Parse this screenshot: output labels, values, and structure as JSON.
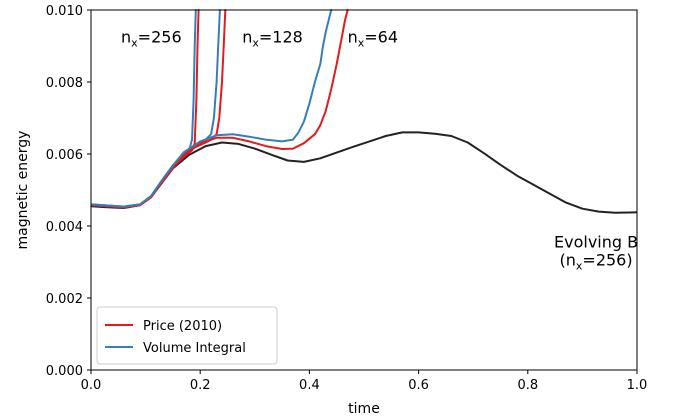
{
  "chart_data": {
    "type": "line",
    "xlabel": "time",
    "ylabel": "magnetic energy",
    "xlim": [
      0.0,
      1.0
    ],
    "ylim": [
      0.0,
      0.01
    ],
    "x_ticks": [
      0.0,
      0.2,
      0.4,
      0.6,
      0.8,
      1.0
    ],
    "x_tick_labels": [
      "0.0",
      "0.2",
      "0.4",
      "0.6",
      "0.8",
      "1.0"
    ],
    "y_ticks": [
      0.0,
      0.002,
      0.004,
      0.006,
      0.008,
      0.01
    ],
    "y_tick_labels": [
      "0.000",
      "0.002",
      "0.004",
      "0.006",
      "0.008",
      "0.010"
    ],
    "grid": false,
    "legend": {
      "position": "lower-left",
      "entries": [
        {
          "label": "Price (2010)",
          "color": "#e41a1c"
        },
        {
          "label": "Volume Integral",
          "color": "#377eb8"
        }
      ]
    },
    "annotations": [
      {
        "id": "ann-nx256",
        "base": "n",
        "sub": "x",
        "rest": "=256",
        "x": 0.055,
        "y": 0.0091
      },
      {
        "id": "ann-nx128",
        "base": "n",
        "sub": "x",
        "rest": "=128",
        "x": 0.277,
        "y": 0.0091
      },
      {
        "id": "ann-nx64",
        "base": "n",
        "sub": "x",
        "rest": "=64",
        "x": 0.47,
        "y": 0.0091
      }
    ],
    "evolving_label": {
      "line1": "Evolving B",
      "base": "(n",
      "sub": "x",
      "rest": "=256)",
      "x": 0.925,
      "y1": 0.0034,
      "y2": 0.0029
    },
    "series": [
      {
        "name": "",
        "group": "evolving",
        "color": "#222222",
        "points": [
          [
            0.0,
            0.00455
          ],
          [
            0.03,
            0.00452
          ],
          [
            0.06,
            0.0045
          ],
          [
            0.09,
            0.00458
          ],
          [
            0.11,
            0.0048
          ],
          [
            0.13,
            0.0052
          ],
          [
            0.15,
            0.0056
          ],
          [
            0.18,
            0.00598
          ],
          [
            0.21,
            0.00622
          ],
          [
            0.24,
            0.00632
          ],
          [
            0.27,
            0.00628
          ],
          [
            0.3,
            0.00615
          ],
          [
            0.33,
            0.00598
          ],
          [
            0.36,
            0.00582
          ],
          [
            0.39,
            0.00578
          ],
          [
            0.42,
            0.00588
          ],
          [
            0.45,
            0.00604
          ],
          [
            0.48,
            0.0062
          ],
          [
            0.51,
            0.00635
          ],
          [
            0.54,
            0.0065
          ],
          [
            0.57,
            0.0066
          ],
          [
            0.6,
            0.0066
          ],
          [
            0.63,
            0.00656
          ],
          [
            0.66,
            0.0065
          ],
          [
            0.69,
            0.00632
          ],
          [
            0.72,
            0.00602
          ],
          [
            0.75,
            0.0057
          ],
          [
            0.78,
            0.0054
          ],
          [
            0.81,
            0.00515
          ],
          [
            0.84,
            0.0049
          ],
          [
            0.87,
            0.00465
          ],
          [
            0.9,
            0.00448
          ],
          [
            0.93,
            0.0044
          ],
          [
            0.96,
            0.00437
          ],
          [
            1.0,
            0.00438
          ]
        ]
      },
      {
        "name": "",
        "group": "price",
        "color": "#e41a1c",
        "points": [
          [
            0.0,
            0.00458
          ],
          [
            0.03,
            0.00455
          ],
          [
            0.06,
            0.00452
          ],
          [
            0.09,
            0.00458
          ],
          [
            0.11,
            0.0048
          ],
          [
            0.13,
            0.00522
          ],
          [
            0.15,
            0.00562
          ],
          [
            0.17,
            0.00592
          ],
          [
            0.185,
            0.0061
          ],
          [
            0.19,
            0.0063
          ],
          [
            0.193,
            0.0075
          ],
          [
            0.195,
            0.009
          ],
          [
            0.197,
            0.01
          ]
        ]
      },
      {
        "name": "",
        "group": "volume",
        "color": "#377eb8",
        "points": [
          [
            0.0,
            0.0046
          ],
          [
            0.03,
            0.00457
          ],
          [
            0.06,
            0.00454
          ],
          [
            0.09,
            0.0046
          ],
          [
            0.11,
            0.00483
          ],
          [
            0.13,
            0.00527
          ],
          [
            0.15,
            0.00568
          ],
          [
            0.17,
            0.00598
          ],
          [
            0.18,
            0.00612
          ],
          [
            0.185,
            0.0064
          ],
          [
            0.188,
            0.0075
          ],
          [
            0.19,
            0.009
          ],
          [
            0.192,
            0.01
          ]
        ]
      },
      {
        "name": "",
        "group": "price",
        "color": "#e41a1c",
        "points": [
          [
            0.0,
            0.00458
          ],
          [
            0.03,
            0.00455
          ],
          [
            0.06,
            0.00452
          ],
          [
            0.09,
            0.00458
          ],
          [
            0.11,
            0.0048
          ],
          [
            0.13,
            0.00522
          ],
          [
            0.15,
            0.00562
          ],
          [
            0.17,
            0.00595
          ],
          [
            0.19,
            0.00618
          ],
          [
            0.21,
            0.00632
          ],
          [
            0.22,
            0.0064
          ],
          [
            0.23,
            0.00655
          ],
          [
            0.235,
            0.007
          ],
          [
            0.24,
            0.008
          ],
          [
            0.243,
            0.009
          ],
          [
            0.246,
            0.01
          ]
        ]
      },
      {
        "name": "",
        "group": "volume",
        "color": "#377eb8",
        "points": [
          [
            0.0,
            0.0046
          ],
          [
            0.03,
            0.00457
          ],
          [
            0.06,
            0.00454
          ],
          [
            0.09,
            0.0046
          ],
          [
            0.11,
            0.00483
          ],
          [
            0.13,
            0.00527
          ],
          [
            0.15,
            0.00568
          ],
          [
            0.17,
            0.006
          ],
          [
            0.19,
            0.00625
          ],
          [
            0.21,
            0.0064
          ],
          [
            0.22,
            0.00655
          ],
          [
            0.225,
            0.007
          ],
          [
            0.23,
            0.008
          ],
          [
            0.233,
            0.009
          ],
          [
            0.236,
            0.01
          ]
        ]
      },
      {
        "name": "",
        "group": "price",
        "color": "#e41a1c",
        "points": [
          [
            0.0,
            0.00458
          ],
          [
            0.03,
            0.00455
          ],
          [
            0.06,
            0.00452
          ],
          [
            0.09,
            0.00458
          ],
          [
            0.11,
            0.0048
          ],
          [
            0.13,
            0.00522
          ],
          [
            0.15,
            0.00562
          ],
          [
            0.17,
            0.006
          ],
          [
            0.2,
            0.0063
          ],
          [
            0.23,
            0.00645
          ],
          [
            0.26,
            0.00645
          ],
          [
            0.29,
            0.00635
          ],
          [
            0.32,
            0.00622
          ],
          [
            0.35,
            0.00614
          ],
          [
            0.37,
            0.00615
          ],
          [
            0.39,
            0.0063
          ],
          [
            0.41,
            0.00655
          ],
          [
            0.42,
            0.0068
          ],
          [
            0.43,
            0.0072
          ],
          [
            0.44,
            0.0078
          ],
          [
            0.45,
            0.0085
          ],
          [
            0.46,
            0.0093
          ],
          [
            0.465,
            0.0097
          ],
          [
            0.47,
            0.01
          ]
        ]
      },
      {
        "name": "",
        "group": "volume",
        "color": "#377eb8",
        "points": [
          [
            0.0,
            0.0046
          ],
          [
            0.03,
            0.00457
          ],
          [
            0.06,
            0.00454
          ],
          [
            0.09,
            0.0046
          ],
          [
            0.11,
            0.00483
          ],
          [
            0.13,
            0.00527
          ],
          [
            0.15,
            0.00568
          ],
          [
            0.17,
            0.00605
          ],
          [
            0.2,
            0.00635
          ],
          [
            0.23,
            0.00652
          ],
          [
            0.26,
            0.00655
          ],
          [
            0.29,
            0.00648
          ],
          [
            0.32,
            0.0064
          ],
          [
            0.35,
            0.00635
          ],
          [
            0.37,
            0.0064
          ],
          [
            0.38,
            0.0066
          ],
          [
            0.39,
            0.0069
          ],
          [
            0.4,
            0.0074
          ],
          [
            0.41,
            0.008
          ],
          [
            0.42,
            0.0085
          ],
          [
            0.425,
            0.009
          ],
          [
            0.43,
            0.0094
          ],
          [
            0.435,
            0.0097
          ],
          [
            0.44,
            0.01
          ]
        ]
      }
    ]
  }
}
